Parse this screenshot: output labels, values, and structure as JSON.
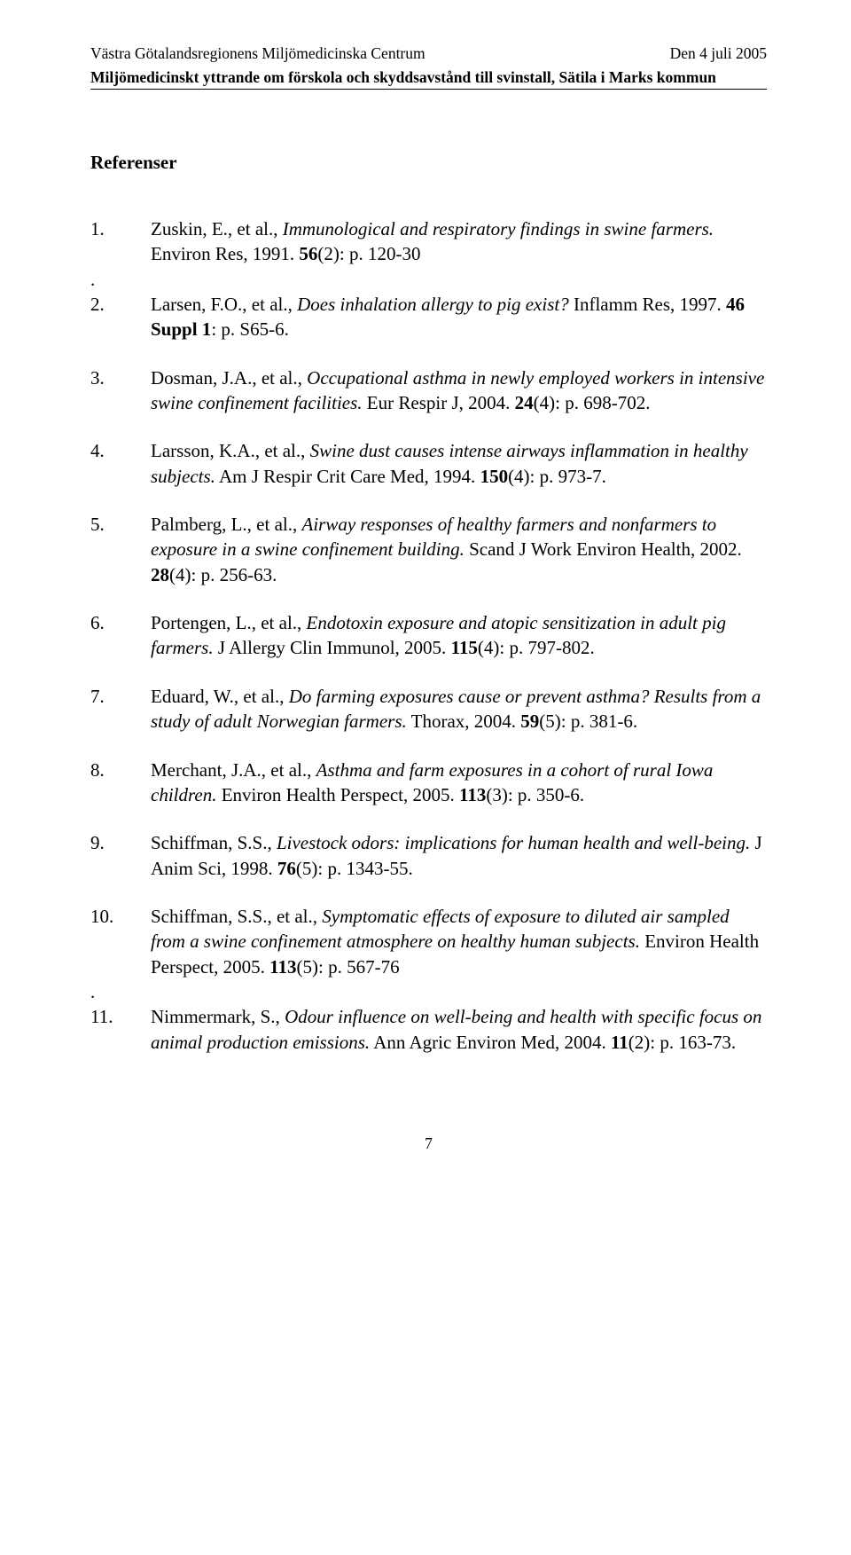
{
  "header": {
    "left": "Västra Götalandsregionens Miljömedicinska Centrum",
    "right": "Den 4 juli 2005",
    "sub": "Miljömedicinskt yttrande om förskola och skyddsavstånd till svinstall, Sätila i Marks kommun"
  },
  "section_title": "Referenser",
  "refs": [
    {
      "num": "1.",
      "pre": "Zuskin, E., et al., ",
      "italic": "Immunological and respiratory findings in swine farmers.",
      "post1": " Environ Res, 1991. ",
      "bold": "56",
      "post2": "(2): p. 120-30"
    },
    {
      "num": "2.",
      "pre": "Larsen, F.O., et al., ",
      "italic": "Does inhalation allergy to pig exist?",
      "post1": " Inflamm Res, 1997. ",
      "bold": "46 Suppl 1",
      "post2": ": p. S65-6."
    },
    {
      "num": "3.",
      "pre": "Dosman, J.A., et al., ",
      "italic": "Occupational asthma in newly employed workers in intensive swine confinement facilities.",
      "post1": " Eur Respir J, 2004. ",
      "bold": "24",
      "post2": "(4): p. 698-702."
    },
    {
      "num": "4.",
      "pre": "Larsson, K.A., et al., ",
      "italic": "Swine dust causes intense airways inflammation in healthy subjects.",
      "post1": " Am J Respir Crit Care Med, 1994. ",
      "bold": "150",
      "post2": "(4): p. 973-7."
    },
    {
      "num": "5.",
      "pre": "Palmberg, L., et al., ",
      "italic": "Airway responses of healthy farmers and nonfarmers to exposure in a swine confinement building.",
      "post1": " Scand J Work Environ Health, 2002. ",
      "bold": "28",
      "post2": "(4): p. 256-63."
    },
    {
      "num": "6.",
      "pre": "Portengen, L., et al., ",
      "italic": "Endotoxin exposure and atopic sensitization in adult pig farmers.",
      "post1": " J Allergy Clin Immunol, 2005. ",
      "bold": "115",
      "post2": "(4): p. 797-802."
    },
    {
      "num": "7.",
      "pre": "Eduard, W., et al., ",
      "italic": "Do farming exposures cause or prevent asthma? Results from a study of adult Norwegian farmers.",
      "post1": " Thorax, 2004. ",
      "bold": "59",
      "post2": "(5): p. 381-6."
    },
    {
      "num": "8.",
      "pre": "Merchant, J.A., et al., ",
      "italic": "Asthma and farm exposures in a cohort of rural Iowa children.",
      "post1": " Environ Health Perspect, 2005. ",
      "bold": "113",
      "post2": "(3): p. 350-6."
    },
    {
      "num": "9.",
      "pre": "Schiffman, S.S., ",
      "italic": "Livestock odors: implications for human health and well-being.",
      "post1": " J Anim Sci, 1998. ",
      "bold": "76",
      "post2": "(5): p. 1343-55."
    },
    {
      "num": "10.",
      "pre": "Schiffman, S.S., et al., ",
      "italic": "Symptomatic effects of exposure to diluted air sampled from a swine confinement atmosphere on healthy human subjects.",
      "post1": " Environ Health Perspect, 2005. ",
      "bold": "113",
      "post2": "(5): p. 567-76"
    },
    {
      "num": "11.",
      "pre": "Nimmermark, S., ",
      "italic": "Odour influence on well-being and health with specific focus on animal production emissions.",
      "post1": " Ann Agric Environ Med, 2004. ",
      "bold": "11",
      "post2": "(2): p. 163-73."
    }
  ],
  "dot1": ".",
  "dot2": ".",
  "page_number": "7"
}
